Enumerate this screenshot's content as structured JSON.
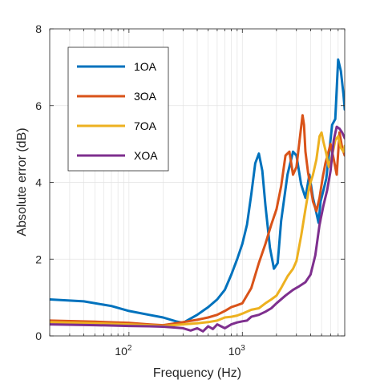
{
  "chart_data": {
    "type": "line",
    "title": "",
    "xlabel": "Frequency (Hz)",
    "ylabel": "Absolute error (dB)",
    "xscale": "log",
    "xlim": [
      20,
      8000
    ],
    "ylim": [
      0,
      8
    ],
    "x_ticks": [
      {
        "value": 100,
        "base": "10",
        "exp": "2"
      },
      {
        "value": 1000,
        "base": "10",
        "exp": "3"
      }
    ],
    "y_ticks": [
      {
        "value": 0,
        "label": "0"
      },
      {
        "value": 2,
        "label": "2"
      },
      {
        "value": 4,
        "label": "4"
      },
      {
        "value": 6,
        "label": "6"
      },
      {
        "value": 8,
        "label": "8"
      }
    ],
    "grid": true,
    "legend_position": "top-left",
    "series": [
      {
        "name": "1OA",
        "color": "#0072BD",
        "x": [
          20,
          40,
          70,
          100,
          150,
          200,
          260,
          300,
          400,
          500,
          600,
          700,
          800,
          900,
          1000,
          1100,
          1200,
          1300,
          1400,
          1500,
          1600,
          1750,
          1900,
          2050,
          2200,
          2500,
          2800,
          3000,
          3300,
          3600,
          3900,
          4200,
          4500,
          4700,
          4900,
          5200,
          5500,
          5800,
          6200,
          6600,
          7000,
          7400,
          7800,
          8000
        ],
        "y": [
          0.95,
          0.9,
          0.78,
          0.65,
          0.55,
          0.48,
          0.38,
          0.34,
          0.55,
          0.75,
          0.95,
          1.2,
          1.6,
          2.0,
          2.4,
          2.9,
          3.7,
          4.5,
          4.75,
          4.3,
          3.4,
          2.3,
          1.75,
          1.9,
          3.0,
          4.2,
          4.8,
          4.7,
          3.95,
          3.6,
          4.2,
          3.6,
          3.2,
          2.95,
          3.5,
          3.8,
          4.1,
          4.7,
          5.5,
          5.65,
          7.2,
          6.9,
          6.3,
          5.9
        ]
      },
      {
        "name": "3OA",
        "color": "#D95319",
        "x": [
          20,
          50,
          100,
          150,
          200,
          300,
          400,
          500,
          600,
          700,
          800,
          900,
          1000,
          1200,
          1400,
          1600,
          1800,
          2000,
          2200,
          2400,
          2600,
          2800,
          3000,
          3200,
          3400,
          3500,
          3600,
          3800,
          4000,
          4200,
          4500,
          4800,
          5100,
          5400,
          5700,
          6000,
          6400,
          6800,
          7200,
          7600,
          8000
        ],
        "y": [
          0.4,
          0.37,
          0.34,
          0.3,
          0.28,
          0.36,
          0.42,
          0.48,
          0.55,
          0.65,
          0.75,
          0.8,
          0.85,
          1.25,
          1.9,
          2.4,
          2.9,
          3.3,
          3.9,
          4.7,
          4.8,
          4.2,
          4.4,
          5.1,
          5.75,
          5.5,
          4.8,
          4.25,
          3.9,
          3.5,
          3.25,
          3.6,
          4.1,
          4.5,
          4.75,
          5.0,
          4.6,
          4.2,
          5.3,
          4.9,
          4.7
        ]
      },
      {
        "name": "7OA",
        "color": "#EDB120",
        "x": [
          20,
          50,
          100,
          150,
          200,
          300,
          400,
          500,
          600,
          700,
          800,
          900,
          1000,
          1200,
          1400,
          1600,
          1800,
          2000,
          2200,
          2500,
          2800,
          3000,
          3300,
          3600,
          3900,
          4200,
          4500,
          4800,
          5000,
          5200,
          5500,
          5800,
          6200,
          6600,
          7000,
          7400,
          7800,
          8000
        ],
        "y": [
          0.36,
          0.33,
          0.3,
          0.28,
          0.26,
          0.3,
          0.33,
          0.36,
          0.4,
          0.48,
          0.5,
          0.53,
          0.58,
          0.68,
          0.72,
          0.85,
          0.95,
          1.05,
          1.25,
          1.55,
          1.75,
          1.95,
          2.6,
          3.3,
          3.9,
          4.2,
          4.6,
          5.2,
          5.3,
          5.05,
          4.75,
          4.4,
          4.7,
          5.1,
          5.2,
          4.9,
          4.8,
          4.95
        ]
      },
      {
        "name": "XOA",
        "color": "#7E2F8E",
        "x": [
          20,
          50,
          100,
          150,
          200,
          250,
          300,
          350,
          400,
          450,
          500,
          550,
          600,
          700,
          800,
          900,
          1000,
          1100,
          1200,
          1400,
          1600,
          1800,
          2000,
          2400,
          2800,
          3200,
          3600,
          4000,
          4400,
          4800,
          5200,
          5600,
          6000,
          6400,
          6800,
          7200,
          7600,
          8000
        ],
        "y": [
          0.3,
          0.28,
          0.26,
          0.25,
          0.24,
          0.22,
          0.2,
          0.14,
          0.2,
          0.12,
          0.25,
          0.18,
          0.3,
          0.2,
          0.3,
          0.35,
          0.38,
          0.4,
          0.5,
          0.55,
          0.63,
          0.72,
          0.85,
          1.05,
          1.2,
          1.3,
          1.4,
          1.6,
          2.1,
          2.9,
          3.4,
          3.8,
          4.3,
          5.1,
          5.45,
          5.4,
          5.3,
          5.15
        ]
      }
    ]
  }
}
